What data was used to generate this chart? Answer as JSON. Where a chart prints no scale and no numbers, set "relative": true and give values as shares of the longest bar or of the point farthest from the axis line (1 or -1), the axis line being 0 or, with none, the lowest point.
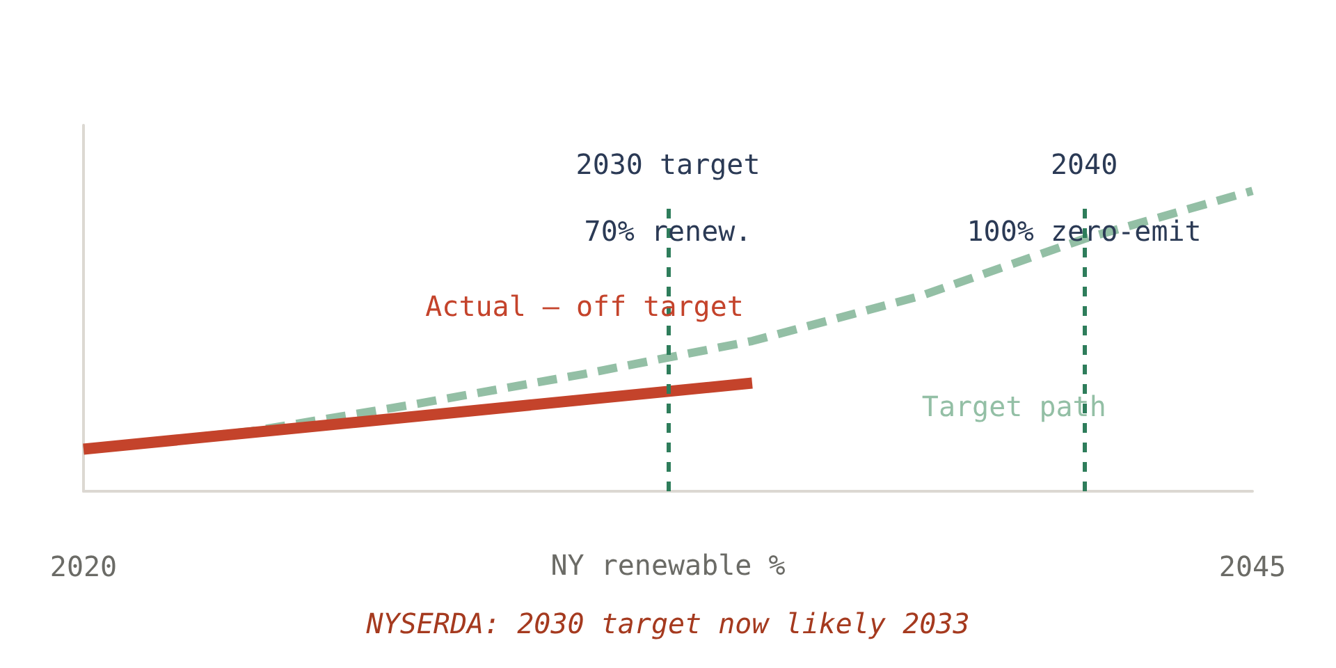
{
  "chart_data": {
    "type": "line",
    "relative": true,
    "xlabel": "NY renewable %",
    "xlim": [
      2020,
      2045
    ],
    "xticks": [
      2020,
      2045
    ],
    "series": [
      {
        "name": "Target path",
        "color": "#93bfa5",
        "line_style": "dashed",
        "x": [
          2020,
          2023.6,
          2027.1,
          2030.7,
          2034.3,
          2037.9,
          2041.4,
          2045
        ],
        "values": [
          0.14,
          0.2,
          0.29,
          0.39,
          0.5,
          0.65,
          0.84,
          1
        ]
      },
      {
        "name": "Actual — off target",
        "color": "#c4432b",
        "line_style": "solid",
        "x": [
          2020,
          2034.3
        ],
        "values": [
          0.14,
          0.36
        ]
      }
    ],
    "ref_lines": [
      {
        "axis": "x",
        "value": 2032.5,
        "label": "2030 target\n70% renew.",
        "color": "#2e7d5b",
        "line_style": "dashed"
      },
      {
        "axis": "x",
        "value": 2041.4,
        "label": "2040\n100% zero-emit",
        "color": "#2e7d5b",
        "line_style": "dashed"
      }
    ],
    "annotations": [
      "NYSERDA: 2030 target now likely 2033"
    ],
    "marker": "none",
    "grid": false,
    "legend": false
  }
}
